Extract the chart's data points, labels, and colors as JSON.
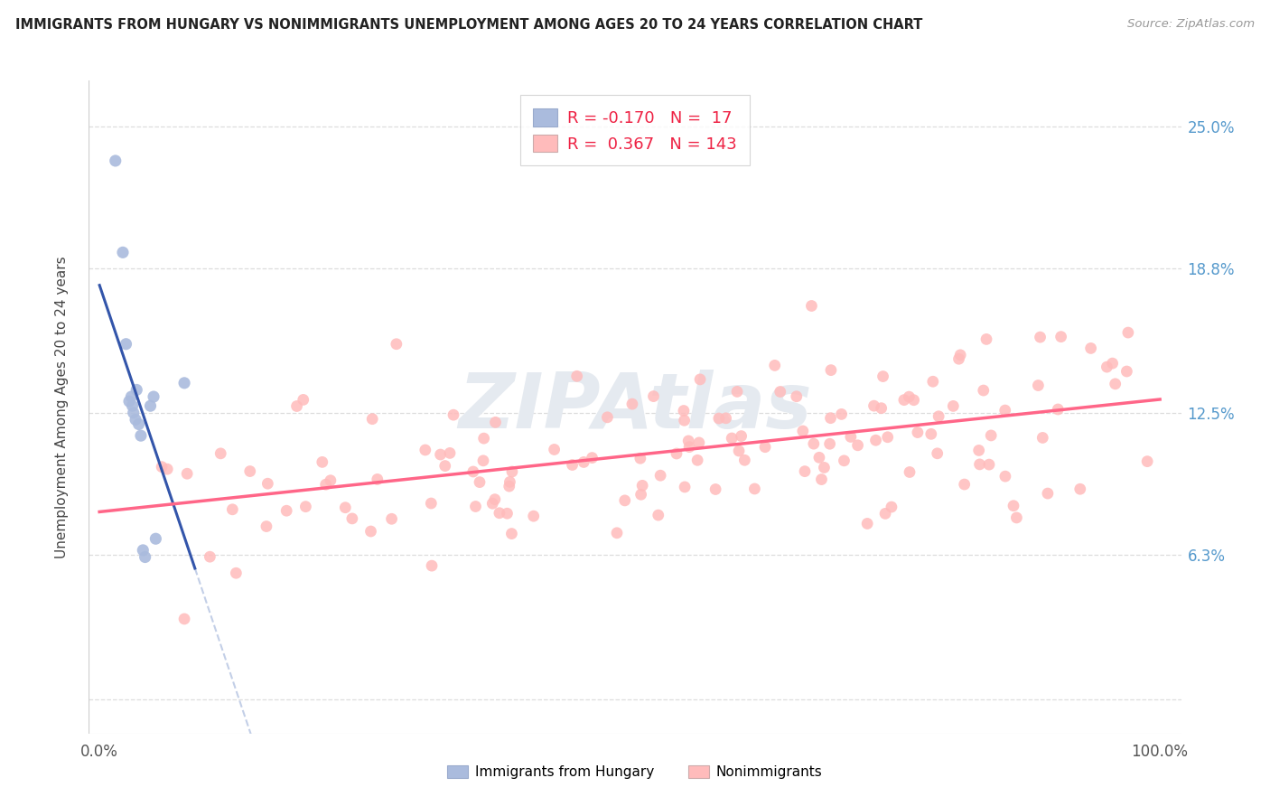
{
  "title": "IMMIGRANTS FROM HUNGARY VS NONIMMIGRANTS UNEMPLOYMENT AMONG AGES 20 TO 24 YEARS CORRELATION CHART",
  "source": "Source: ZipAtlas.com",
  "ylabel": "Unemployment Among Ages 20 to 24 years",
  "xlim": [
    -1.0,
    102.0
  ],
  "ylim": [
    -1.5,
    27.0
  ],
  "ytick_vals": [
    0.0,
    6.3,
    12.5,
    18.8,
    25.0
  ],
  "ytick_labels": [
    "",
    "6.3%",
    "12.5%",
    "18.8%",
    "25.0%"
  ],
  "xtick_vals": [
    0.0,
    100.0
  ],
  "xtick_labels": [
    "0.0%",
    "100.0%"
  ],
  "legend_blue_R": "-0.170",
  "legend_blue_N": "17",
  "legend_pink_R": "0.367",
  "legend_pink_N": "143",
  "blue_dot_color": "#AABBDD",
  "pink_dot_color": "#FFBBBB",
  "blue_line_color": "#3355AA",
  "pink_line_color": "#FF6688",
  "dash_line_color": "#AABBDD",
  "watermark": "ZIPAtlas",
  "background": "#FFFFFF",
  "grid_color": "#DDDDDD",
  "blue_x": [
    1.5,
    2.2,
    2.5,
    2.8,
    3.0,
    3.1,
    3.2,
    3.4,
    3.5,
    3.7,
    3.9,
    4.1,
    4.3,
    4.8,
    5.1,
    5.3,
    8.0
  ],
  "blue_y": [
    23.5,
    19.5,
    15.5,
    13.0,
    13.2,
    12.8,
    12.5,
    12.2,
    13.5,
    12.0,
    11.5,
    6.5,
    6.2,
    12.8,
    13.2,
    7.0,
    13.8
  ]
}
